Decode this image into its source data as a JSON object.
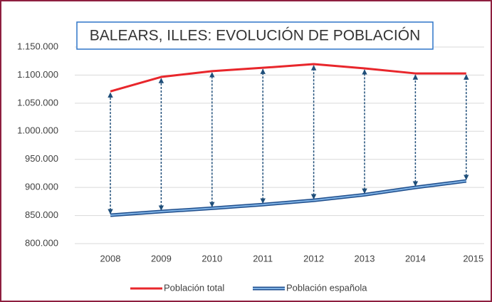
{
  "chart_data": {
    "type": "line",
    "title": "BALEARS, ILLES: EVOLUCIÓN DE POBLACIÓN",
    "categories": [
      "2008",
      "2009",
      "2010",
      "2011",
      "2012",
      "2013",
      "2014",
      "2015"
    ],
    "series": [
      {
        "name": "Población total",
        "color": "#e8262b",
        "values": [
          1071000,
          1096700,
          1107000,
          1113000,
          1119500,
          1112000,
          1103000,
          1103000
        ]
      },
      {
        "name": "Población española",
        "color": "#2e75c8",
        "values": [
          850500,
          857000,
          863000,
          869500,
          877000,
          887000,
          900000,
          911500
        ]
      }
    ],
    "ylim": [
      800000,
      1150000
    ],
    "yticks": [
      {
        "value": 800000,
        "label": "800.000"
      },
      {
        "value": 850000,
        "label": "850.000"
      },
      {
        "value": 900000,
        "label": "900.000"
      },
      {
        "value": 950000,
        "label": "950.000"
      },
      {
        "value": 1000000,
        "label": "1.000.000"
      },
      {
        "value": 1050000,
        "label": "1.050.000"
      },
      {
        "value": 1100000,
        "label": "1.100.000"
      },
      {
        "value": 1150000,
        "label": "1.150.000"
      }
    ],
    "grid": true,
    "legend": "bottom"
  }
}
